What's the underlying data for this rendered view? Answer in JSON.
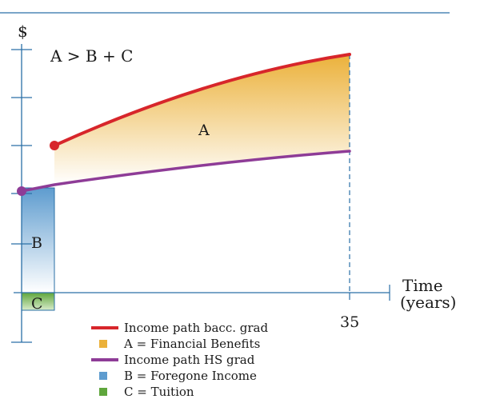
{
  "chart_data": {
    "type": "area",
    "y_axis_label": "$",
    "x_axis_label_line1": "Time",
    "x_axis_label_line2": "(years)",
    "x_tick_label": "35",
    "annotation": "A > B + C",
    "region_labels": {
      "A": "A",
      "B": "B",
      "C": "C"
    },
    "colors": {
      "axis": "#2a6fa6",
      "bacc_line": "#d7262b",
      "hs_line": "#8e3c97",
      "area_a": "#ebb13a",
      "area_b": "#5e9ccf",
      "area_c": "#5fa63c"
    },
    "legend": [
      {
        "label": "Income path bacc. grad",
        "kind": "line",
        "color_key": "bacc_line"
      },
      {
        "label": "A = Financial Benefits",
        "kind": "box",
        "color_key": "area_a"
      },
      {
        "label": "Income path HS grad",
        "kind": "line",
        "color_key": "hs_line"
      },
      {
        "label": "B = Foregone Income",
        "kind": "box",
        "color_key": "area_b"
      },
      {
        "label": "C = Tuition",
        "kind": "box",
        "color_key": "area_c"
      }
    ]
  }
}
